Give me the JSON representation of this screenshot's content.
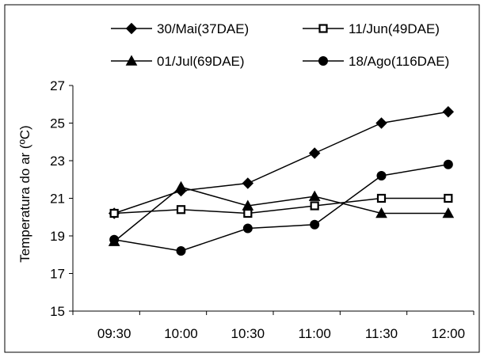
{
  "chart_data": {
    "type": "line",
    "title": "",
    "xlabel": "",
    "ylabel": "Temperatura do ar (ºC)",
    "categories": [
      "09:30",
      "10:00",
      "10:30",
      "11:00",
      "11:30",
      "12:00"
    ],
    "ylim": [
      15,
      27
    ],
    "yticks": [
      15,
      17,
      19,
      21,
      23,
      25,
      27
    ],
    "grid": false,
    "legend_position": "top",
    "series": [
      {
        "name": "30/Mai(37DAE)",
        "marker": "diamond",
        "values": [
          20.2,
          21.4,
          21.8,
          23.4,
          25.0,
          25.6
        ]
      },
      {
        "name": "11/Jun(49DAE)",
        "marker": "square",
        "values": [
          20.2,
          20.4,
          20.2,
          20.6,
          21.0,
          21.0
        ]
      },
      {
        "name": "01/Jul(69DAE)",
        "marker": "triangle",
        "values": [
          18.7,
          21.6,
          20.6,
          21.1,
          20.2,
          20.2
        ]
      },
      {
        "name": "18/Ago(116DAE)",
        "marker": "circle",
        "values": [
          18.8,
          18.2,
          19.4,
          19.6,
          22.2,
          22.8
        ]
      }
    ],
    "line_color": "#000000"
  }
}
